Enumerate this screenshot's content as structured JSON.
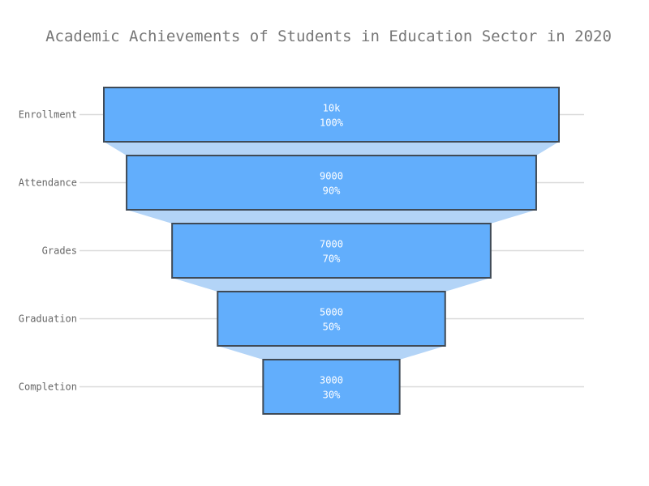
{
  "chart_data": {
    "type": "funnel",
    "title": "Academic Achievements of Students in Education Sector in 2020",
    "categories": [
      "Enrollment",
      "Attendance",
      "Grades",
      "Graduation",
      "Completion"
    ],
    "values": [
      10000,
      9000,
      7000,
      5000,
      3000
    ],
    "value_labels": [
      "10k",
      "9000",
      "7000",
      "5000",
      "3000"
    ],
    "percent_labels": [
      "100%",
      "90%",
      "70%",
      "50%",
      "30%"
    ],
    "bar_color": "#62aefc",
    "connector_color": "#b3d4f7",
    "outline_color": "#3f4a56",
    "grid": true
  }
}
